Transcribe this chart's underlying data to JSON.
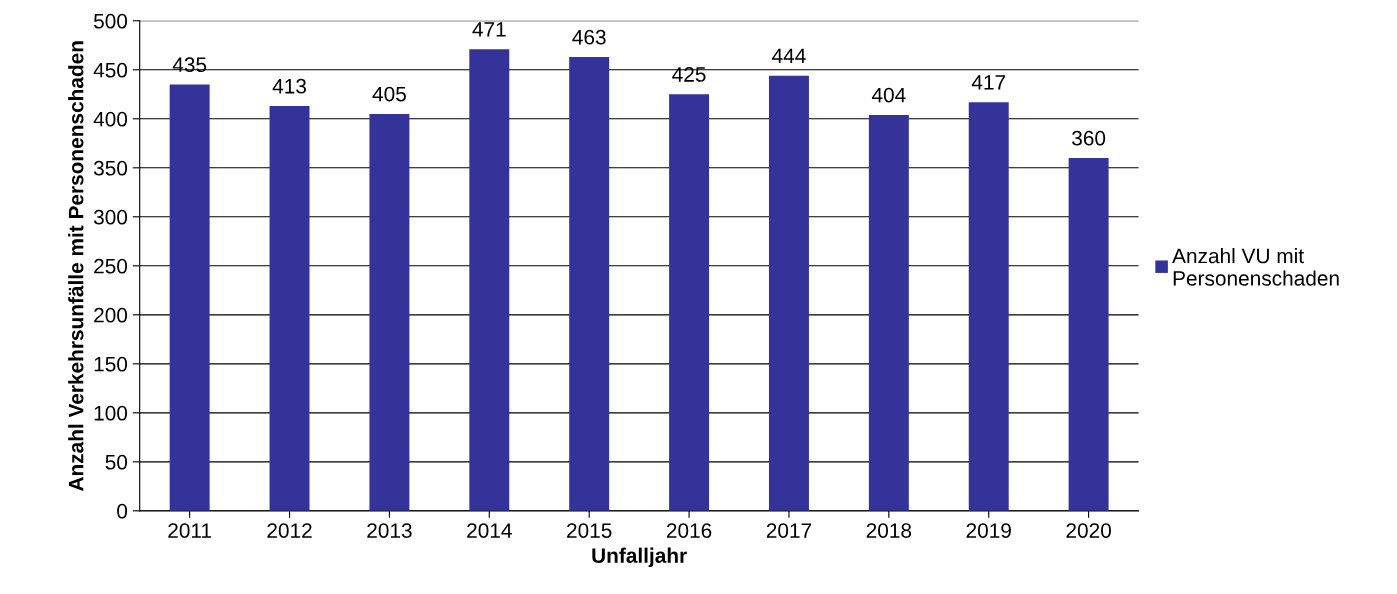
{
  "chart_data": {
    "type": "bar",
    "xlabel": "Unfalljahr",
    "ylabel": "Anzahl Verkehrsunfälle mit Personenschaden",
    "categories": [
      "2011",
      "2012",
      "2013",
      "2014",
      "2015",
      "2016",
      "2017",
      "2018",
      "2019",
      "2020"
    ],
    "series": [
      {
        "name": "Anzahl VU mit Personenschaden",
        "color": "#333399",
        "values": [
          435,
          413,
          405,
          471,
          463,
          425,
          444,
          404,
          417,
          360
        ]
      }
    ],
    "ylim": [
      0,
      500
    ],
    "yticks": [
      0,
      50,
      100,
      150,
      200,
      250,
      300,
      350,
      400,
      450,
      500
    ],
    "grid": "y",
    "legend": "right",
    "data_labels": true
  }
}
